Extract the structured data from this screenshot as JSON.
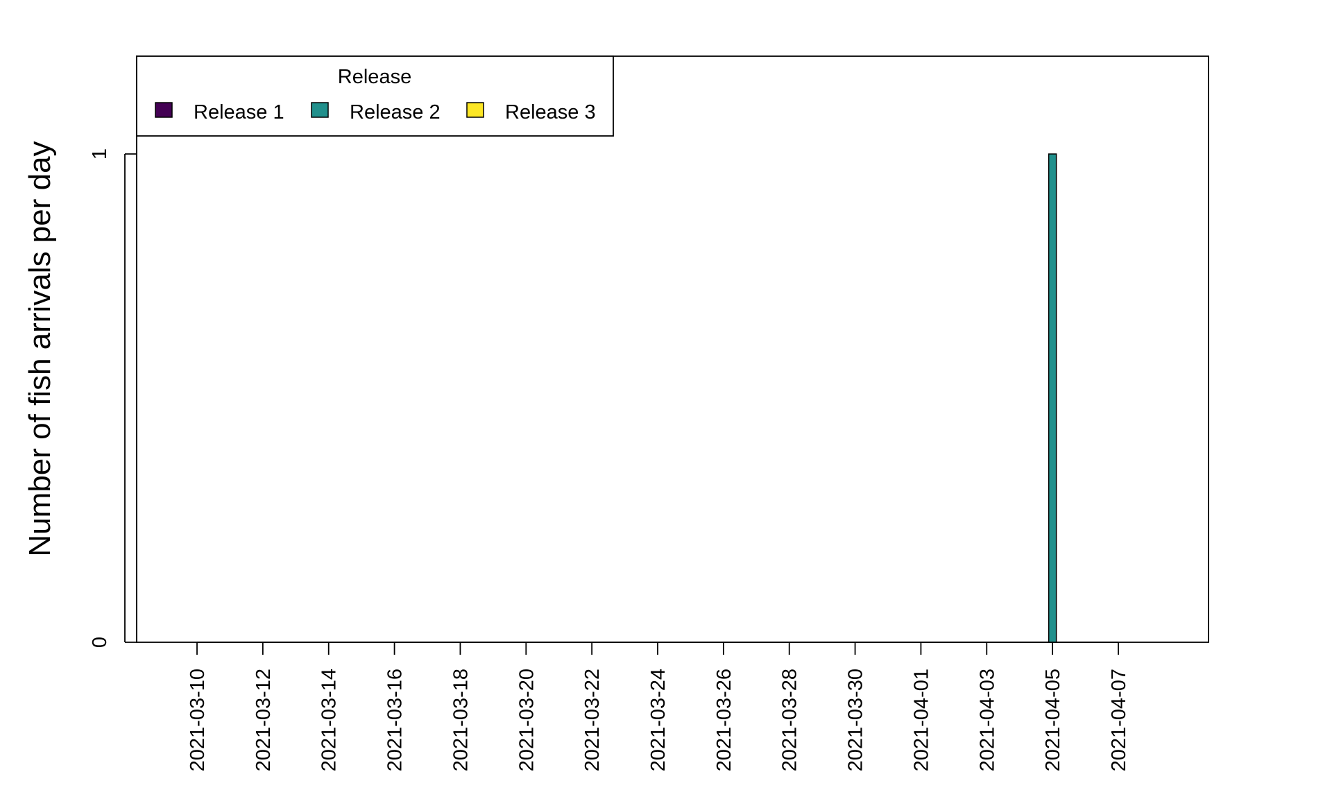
{
  "chart_data": {
    "type": "bar",
    "ylabel": "Number of fish arrivals per day",
    "xlabel": "",
    "x_tick_labels": [
      "2021-03-10",
      "2021-03-12",
      "2021-03-14",
      "2021-03-16",
      "2021-03-18",
      "2021-03-20",
      "2021-03-22",
      "2021-03-24",
      "2021-03-26",
      "2021-03-28",
      "2021-03-30",
      "2021-04-01",
      "2021-04-03",
      "2021-04-05",
      "2021-04-07"
    ],
    "xlim": [
      "2021-03-08",
      "2021-04-10"
    ],
    "y_ticks": [
      0,
      1
    ],
    "ylim": [
      0,
      1.2
    ],
    "legend": {
      "title": "Release",
      "placement": "top-left",
      "entries": [
        {
          "label": "Release 1",
          "color": "#440154"
        },
        {
          "label": "Release 2",
          "color": "#21908C"
        },
        {
          "label": "Release 3",
          "color": "#FDE725"
        }
      ]
    },
    "series": [
      {
        "name": "Release 1",
        "color": "#440154",
        "points": []
      },
      {
        "name": "Release 2",
        "color": "#21908C",
        "points": [
          {
            "x": "2021-04-05",
            "y": 1
          }
        ]
      },
      {
        "name": "Release 3",
        "color": "#FDE725",
        "points": []
      }
    ]
  }
}
